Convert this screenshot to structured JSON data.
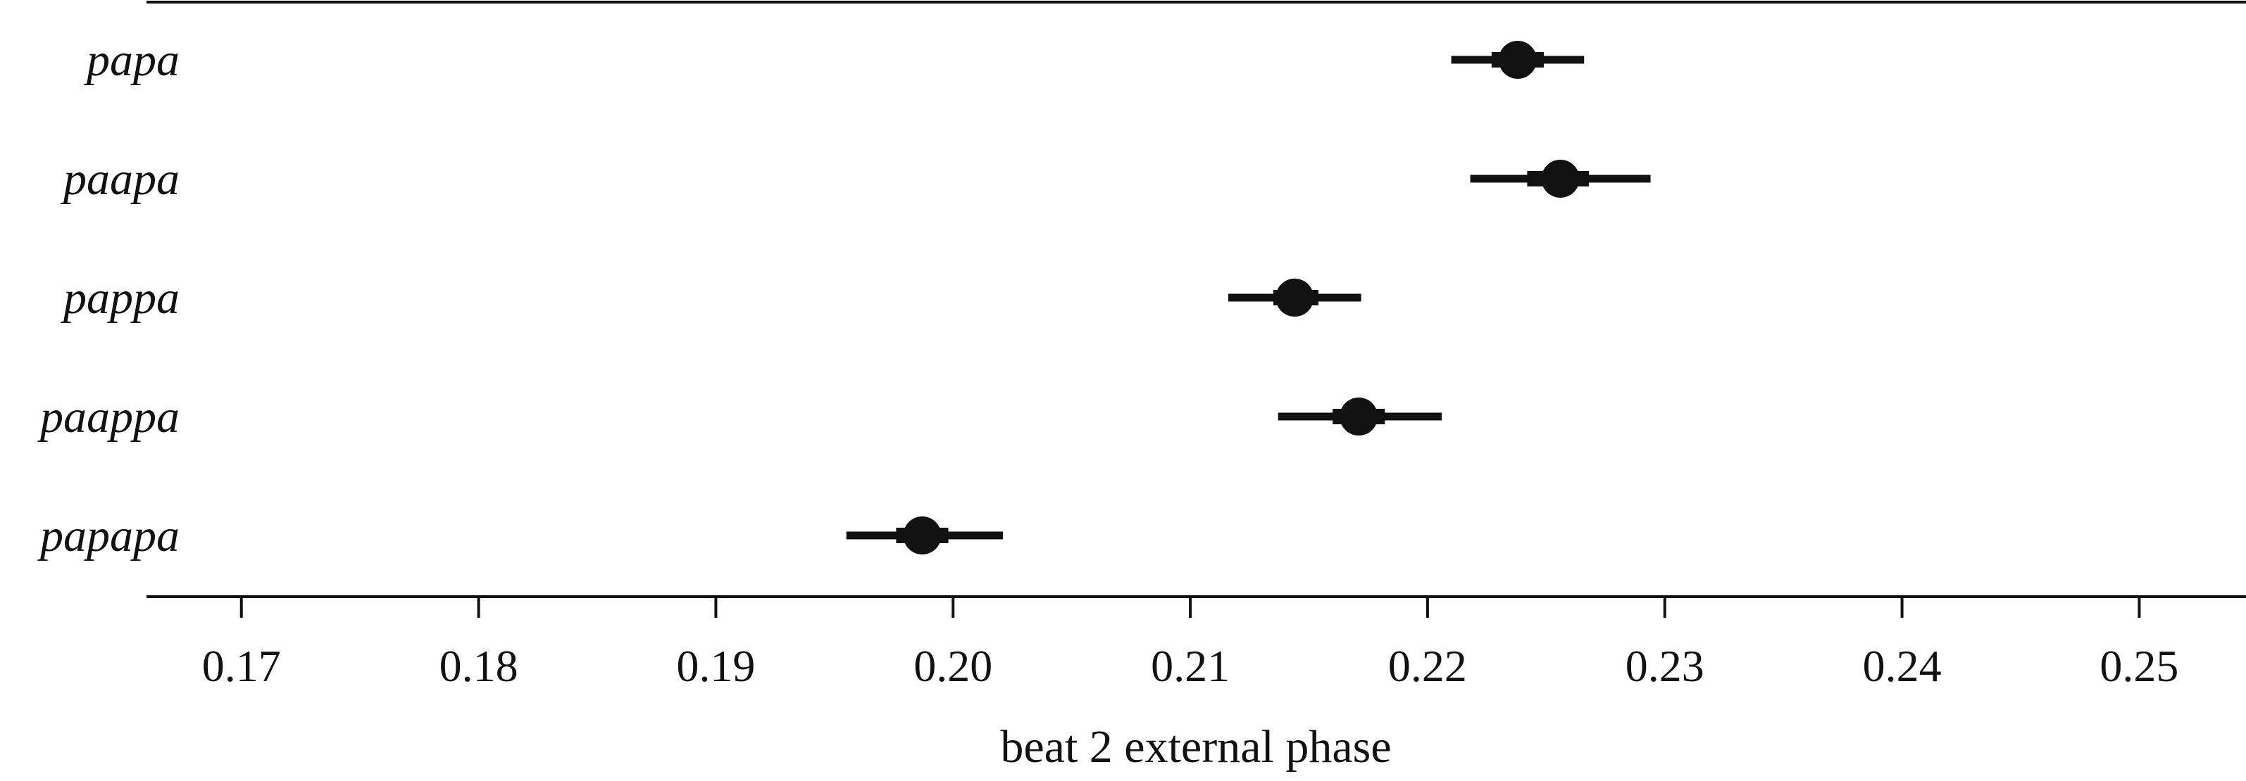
{
  "chart_data": {
    "type": "scatter",
    "subtype": "dot-and-whisker",
    "title": "",
    "xlabel": "beat 2 external phase",
    "ylabel": "",
    "xlim": [
      0.166,
      0.2545
    ],
    "xticks": [
      0.17,
      0.18,
      0.19,
      0.2,
      0.21,
      0.22,
      0.23,
      0.24,
      0.25
    ],
    "xtick_labels": [
      "0.17",
      "0.18",
      "0.19",
      "0.20",
      "0.21",
      "0.22",
      "0.23",
      "0.24",
      "0.25"
    ],
    "categories": [
      "papa",
      "paapa",
      "pappa",
      "paappa",
      "papapa"
    ],
    "series": [
      {
        "estimates": [
          0.2238,
          0.2256,
          0.2144,
          0.2171,
          0.1987
        ],
        "inner_interval_low": [
          0.2227,
          0.2242,
          0.2135,
          0.216,
          0.1976
        ],
        "inner_interval_high": [
          0.2249,
          0.2268,
          0.2154,
          0.2182,
          0.1998
        ],
        "outer_interval_low": [
          0.221,
          0.2218,
          0.2116,
          0.2137,
          0.1955
        ],
        "outer_interval_high": [
          0.2266,
          0.2294,
          0.2172,
          0.2206,
          0.2021
        ]
      }
    ],
    "grid": false,
    "legend": "none",
    "colors": {
      "mark": "#111111",
      "axis": "#111111",
      "background": "#ffffff"
    }
  }
}
